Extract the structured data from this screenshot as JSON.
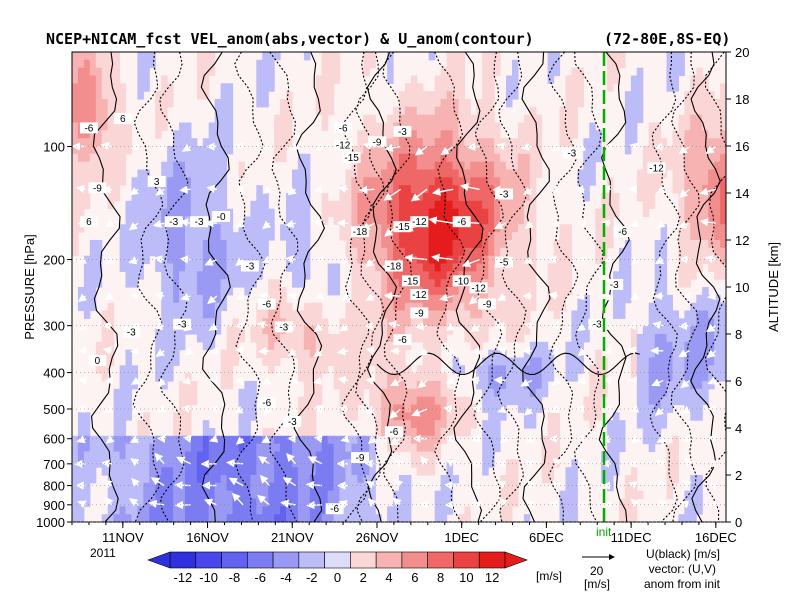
{
  "chart_data": {
    "type": "heatmap",
    "title": "NCEP+NICAM_fcst VEL_anom(abs,vector) & U_anom(contour)",
    "region": "(72-80E,8S-EQ)",
    "ylabel_left": "PRESSURE [hPa]",
    "ylabel_right": "ALTITUDE [km]",
    "x_ticks": [
      "11NOV",
      "16NOV",
      "21NOV",
      "26NOV",
      "1DEC",
      "6DEC",
      "11DEC",
      "16DEC"
    ],
    "x_year": "2011",
    "y_ticks_pressure": [
      100,
      200,
      300,
      400,
      500,
      600,
      700,
      800,
      900,
      1000
    ],
    "y_ticks_altitude": [
      0,
      2,
      4,
      6,
      8,
      10,
      12,
      14,
      16,
      18,
      20
    ],
    "init_label": "init",
    "colorbar": {
      "ticks": [
        -12,
        -10,
        -8,
        -6,
        -4,
        -2,
        0,
        2,
        4,
        6,
        8,
        10,
        12
      ],
      "unit": "[m/s]",
      "colors": [
        "#3030e0",
        "#4848ec",
        "#6262f0",
        "#7c7cf2",
        "#9a9af5",
        "#bcbcf8",
        "#dcdcfb",
        "#fbd6d6",
        "#f7b2b2",
        "#f38e8e",
        "#ef6868",
        "#ea4242",
        "#e51c1c"
      ]
    },
    "vector_scale": {
      "value": "20",
      "unit": "[m/s]"
    },
    "legend_text": [
      "U(black) [m/s]",
      "vector: (U,V)",
      "anom from init"
    ],
    "contour_labels": [
      {
        "label": "-6",
        "day": 1,
        "p": 90
      },
      {
        "label": "-9",
        "day": 1.5,
        "p": 130
      },
      {
        "label": "6",
        "day": 3,
        "p": 85
      },
      {
        "label": "3",
        "day": 5,
        "p": 125
      },
      {
        "label": "-3",
        "day": 7.5,
        "p": 160
      },
      {
        "label": "-0",
        "day": 8.8,
        "p": 155
      },
      {
        "label": "-3",
        "day": 10.5,
        "p": 210
      },
      {
        "label": "-6",
        "day": 11.5,
        "p": 265
      },
      {
        "label": "-3",
        "day": 12.5,
        "p": 305
      },
      {
        "label": "-6",
        "day": 16,
        "p": 90
      },
      {
        "label": "-12",
        "day": 16,
        "p": 100
      },
      {
        "label": "-15",
        "day": 16.5,
        "p": 108
      },
      {
        "label": "-9",
        "day": 18,
        "p": 98
      },
      {
        "label": "-3",
        "day": 19.5,
        "p": 92
      },
      {
        "label": "-18",
        "day": 17,
        "p": 170
      },
      {
        "label": "-15",
        "day": 19.5,
        "p": 165
      },
      {
        "label": "-12",
        "day": 20.5,
        "p": 160
      },
      {
        "label": "-18",
        "day": 19,
        "p": 210
      },
      {
        "label": "-15",
        "day": 20,
        "p": 230
      },
      {
        "label": "-12",
        "day": 20.5,
        "p": 250
      },
      {
        "label": "-9",
        "day": 20.5,
        "p": 280
      },
      {
        "label": "-6",
        "day": 23,
        "p": 160
      },
      {
        "label": "-10",
        "day": 23,
        "p": 230
      },
      {
        "label": "-12",
        "day": 24,
        "p": 240
      },
      {
        "label": "-9",
        "day": 24.5,
        "p": 265
      },
      {
        "label": "-5",
        "day": 25.5,
        "p": 205
      },
      {
        "label": "-3",
        "day": 25.5,
        "p": 135
      },
      {
        "label": "-3",
        "day": 29.5,
        "p": 105
      },
      {
        "label": "-6",
        "day": 32.5,
        "p": 170
      },
      {
        "label": "-12",
        "day": 34.5,
        "p": 115
      },
      {
        "label": "-3",
        "day": 32,
        "p": 235
      },
      {
        "label": "-3",
        "day": 31,
        "p": 300
      },
      {
        "label": "-6",
        "day": 11.5,
        "p": 485
      },
      {
        "label": "-9",
        "day": 17,
        "p": 680
      },
      {
        "label": "-6",
        "day": 15.5,
        "p": 930
      },
      {
        "label": "-3",
        "day": 13,
        "p": 545
      },
      {
        "label": "-6",
        "day": 19,
        "p": 580
      },
      {
        "label": "-6",
        "day": 19.5,
        "p": 330
      },
      {
        "label": "-3",
        "day": 3.5,
        "p": 315
      },
      {
        "label": "-3",
        "day": 6.5,
        "p": 300
      },
      {
        "label": "0",
        "day": 1.5,
        "p": 375
      },
      {
        "label": "6",
        "day": 1,
        "p": 160
      },
      {
        "label": "-3",
        "day": 6,
        "p": 160
      }
    ]
  }
}
